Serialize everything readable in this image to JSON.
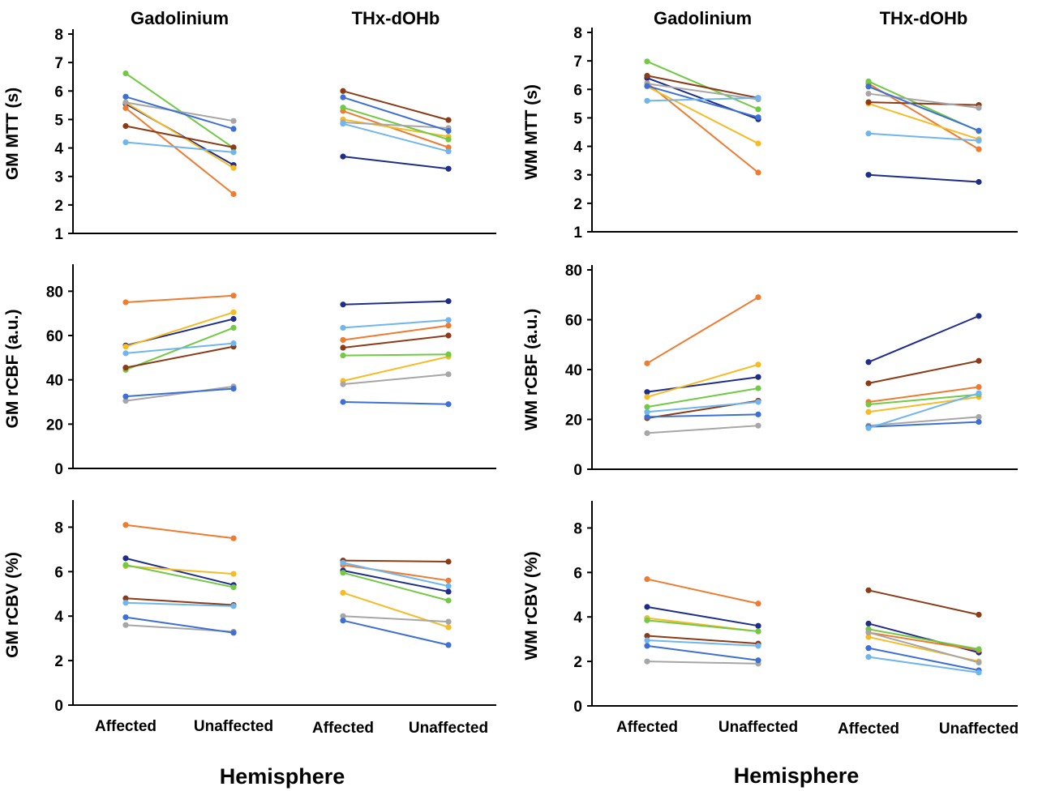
{
  "xlabel": "Hemisphere",
  "groups": [
    "Gadolinium",
    "THx-dOHb"
  ],
  "categories": [
    "Affected",
    "Unaffected"
  ],
  "series_colors": [
    "#1f2d8a",
    "#ee7b30",
    "#f6bb25",
    "#71c944",
    "#8b3b16",
    "#a6a6a6",
    "#3e6fd4",
    "#6fb5ee"
  ],
  "chart_data": [
    {
      "type": "line",
      "ylabel": "GM MTT (s)",
      "ylim": [
        1,
        8
      ],
      "yticks": [
        1,
        2,
        3,
        4,
        5,
        6,
        7,
        8
      ],
      "groups": [
        "Gadolinium",
        "THx-dOHb"
      ],
      "categories": [
        "Affected",
        "Unaffected"
      ],
      "series": [
        {
          "values": [
            [
              5.55,
              3.4
            ],
            [
              3.7,
              3.27
            ]
          ]
        },
        {
          "values": [
            [
              5.4,
              2.38
            ],
            [
              5.3,
              4.02
            ]
          ]
        },
        {
          "values": [
            [
              5.6,
              3.3
            ],
            [
              5.0,
              4.4
            ]
          ]
        },
        {
          "values": [
            [
              6.62,
              4.0
            ],
            [
              5.42,
              4.3
            ]
          ]
        },
        {
          "values": [
            [
              4.77,
              4.02
            ],
            [
              6.0,
              4.98
            ]
          ]
        },
        {
          "values": [
            [
              5.6,
              4.95
            ],
            [
              4.9,
              4.7
            ]
          ]
        },
        {
          "values": [
            [
              5.8,
              4.67
            ],
            [
              5.78,
              4.6
            ]
          ]
        },
        {
          "values": [
            [
              4.2,
              3.85
            ],
            [
              4.85,
              3.88
            ]
          ]
        }
      ]
    },
    {
      "type": "line",
      "ylabel": "WM MTT (s)",
      "ylim": [
        1,
        8
      ],
      "yticks": [
        1,
        2,
        3,
        4,
        5,
        6,
        7,
        8
      ],
      "groups": [
        "Gadolinium",
        "THx-dOHb"
      ],
      "categories": [
        "Affected",
        "Unaffected"
      ],
      "series": [
        {
          "values": [
            [
              6.4,
              4.95
            ],
            [
              3.0,
              2.75
            ]
          ]
        },
        {
          "values": [
            [
              6.22,
              3.08
            ],
            [
              6.2,
              3.9
            ]
          ]
        },
        {
          "values": [
            [
              6.1,
              4.1
            ],
            [
              5.5,
              4.25
            ]
          ]
        },
        {
          "values": [
            [
              6.98,
              5.3
            ],
            [
              6.28,
              4.53
            ]
          ]
        },
        {
          "values": [
            [
              6.48,
              5.7
            ],
            [
              5.55,
              5.45
            ]
          ]
        },
        {
          "values": [
            [
              6.2,
              5.65
            ],
            [
              5.85,
              5.35
            ]
          ]
        },
        {
          "values": [
            [
              6.12,
              5.02
            ],
            [
              6.1,
              4.55
            ]
          ]
        },
        {
          "values": [
            [
              5.6,
              5.7
            ],
            [
              4.45,
              4.2
            ]
          ]
        }
      ]
    },
    {
      "type": "line",
      "ylabel": "GM rCBF (a.u.)",
      "ylim": [
        0,
        90
      ],
      "yticks": [
        0,
        20,
        40,
        60,
        80
      ],
      "groups": [
        "Gadolinium",
        "THx-dOHb"
      ],
      "categories": [
        "Affected",
        "Unaffected"
      ],
      "series": [
        {
          "values": [
            [
              55.5,
              67.5
            ],
            [
              74.0,
              75.5
            ]
          ]
        },
        {
          "values": [
            [
              75.0,
              78.0
            ],
            [
              58.0,
              64.5
            ]
          ]
        },
        {
          "values": [
            [
              55.0,
              70.5
            ],
            [
              39.5,
              50.5
            ]
          ]
        },
        {
          "values": [
            [
              44.5,
              63.5
            ],
            [
              51.0,
              51.5
            ]
          ]
        },
        {
          "values": [
            [
              45.5,
              55.0
            ],
            [
              54.5,
              60.0
            ]
          ]
        },
        {
          "values": [
            [
              30.5,
              37.0
            ],
            [
              38.0,
              42.5
            ]
          ]
        },
        {
          "values": [
            [
              32.5,
              36.0
            ],
            [
              30.0,
              29.0
            ]
          ]
        },
        {
          "values": [
            [
              52.0,
              56.5
            ],
            [
              63.5,
              67.0
            ]
          ]
        }
      ]
    },
    {
      "type": "line",
      "ylabel": "WM rCBF (a.u.)",
      "ylim": [
        0,
        80
      ],
      "yticks": [
        0,
        20,
        40,
        60,
        80
      ],
      "groups": [
        "Gadolinium",
        "THx-dOHb"
      ],
      "categories": [
        "Affected",
        "Unaffected"
      ],
      "series": [
        {
          "values": [
            [
              31.0,
              37.0
            ],
            [
              43.0,
              61.5
            ]
          ]
        },
        {
          "values": [
            [
              42.5,
              69.0
            ],
            [
              27.0,
              33.0
            ]
          ]
        },
        {
          "values": [
            [
              29.0,
              42.0
            ],
            [
              23.0,
              29.0
            ]
          ]
        },
        {
          "values": [
            [
              25.0,
              32.5
            ],
            [
              26.0,
              30.0
            ]
          ]
        },
        {
          "values": [
            [
              20.5,
              27.5
            ],
            [
              34.5,
              43.5
            ]
          ]
        },
        {
          "values": [
            [
              14.5,
              17.5
            ],
            [
              17.5,
              21.0
            ]
          ]
        },
        {
          "values": [
            [
              21.0,
              22.0
            ],
            [
              17.0,
              19.0
            ]
          ]
        },
        {
          "values": [
            [
              23.0,
              27.0
            ],
            [
              16.5,
              30.5
            ]
          ]
        }
      ]
    },
    {
      "type": "line",
      "ylabel": "GM rCBV (%)",
      "ylim": [
        0,
        9
      ],
      "yticks": [
        0,
        2,
        4,
        6,
        8
      ],
      "groups": [
        "Gadolinium",
        "THx-dOHb"
      ],
      "categories": [
        "Affected",
        "Unaffected"
      ],
      "series": [
        {
          "values": [
            [
              6.6,
              5.4
            ],
            [
              6.05,
              5.1
            ]
          ]
        },
        {
          "values": [
            [
              8.1,
              7.5
            ],
            [
              6.3,
              5.6
            ]
          ]
        },
        {
          "values": [
            [
              6.25,
              5.9
            ],
            [
              5.05,
              3.5
            ]
          ]
        },
        {
          "values": [
            [
              6.3,
              5.3
            ],
            [
              5.95,
              4.7
            ]
          ]
        },
        {
          "values": [
            [
              4.8,
              4.5
            ],
            [
              6.5,
              6.45
            ]
          ]
        },
        {
          "values": [
            [
              3.6,
              3.3
            ],
            [
              4.0,
              3.75
            ]
          ]
        },
        {
          "values": [
            [
              3.95,
              3.25
            ],
            [
              3.8,
              2.7
            ]
          ]
        },
        {
          "values": [
            [
              4.6,
              4.45
            ],
            [
              6.4,
              5.35
            ]
          ]
        }
      ]
    },
    {
      "type": "line",
      "ylabel": "WM rCBV (%)",
      "ylim": [
        0,
        9
      ],
      "yticks": [
        0,
        2,
        4,
        6,
        8
      ],
      "groups": [
        "Gadolinium",
        "THx-dOHb"
      ],
      "categories": [
        "Affected",
        "Unaffected"
      ],
      "series": [
        {
          "values": [
            [
              4.45,
              3.6
            ],
            [
              3.7,
              2.4
            ]
          ]
        },
        {
          "values": [
            [
              5.7,
              4.6
            ],
            [
              3.3,
              2.5
            ]
          ]
        },
        {
          "values": [
            [
              3.95,
              3.35
            ],
            [
              3.1,
              2.0
            ]
          ]
        },
        {
          "values": [
            [
              3.85,
              3.35
            ],
            [
              3.45,
              2.55
            ]
          ]
        },
        {
          "values": [
            [
              3.15,
              2.8
            ],
            [
              5.2,
              4.1
            ]
          ]
        },
        {
          "values": [
            [
              2.0,
              1.9
            ],
            [
              3.3,
              1.95
            ]
          ]
        },
        {
          "values": [
            [
              2.7,
              2.05
            ],
            [
              2.6,
              1.6
            ]
          ]
        },
        {
          "values": [
            [
              2.95,
              2.7
            ],
            [
              2.2,
              1.5
            ]
          ]
        }
      ]
    }
  ]
}
